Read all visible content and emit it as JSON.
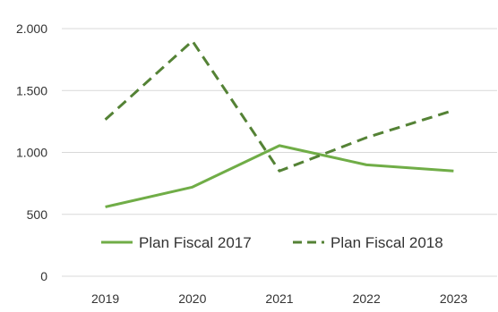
{
  "chart_data": {
    "type": "line",
    "title": "",
    "xlabel": "",
    "ylabel": "",
    "categories": [
      "2019",
      "2020",
      "2021",
      "2022",
      "2023"
    ],
    "ylim": [
      0,
      2000
    ],
    "yticks": [
      0,
      500,
      1000,
      1500,
      2000
    ],
    "ytick_labels": [
      "0",
      "500",
      "1.000",
      "1.500",
      "2.000"
    ],
    "grid": "horizontal",
    "legend_position": "bottom-center",
    "series": [
      {
        "name": "Plan Fiscal 2017",
        "values": [
          560,
          720,
          1055,
          900,
          850
        ],
        "color": "#70ad47",
        "line_style": "solid"
      },
      {
        "name": "Plan Fiscal 2018",
        "values": [
          1265,
          1900,
          850,
          1120,
          1340
        ],
        "color": "#548235",
        "line_style": "dashed"
      }
    ]
  }
}
